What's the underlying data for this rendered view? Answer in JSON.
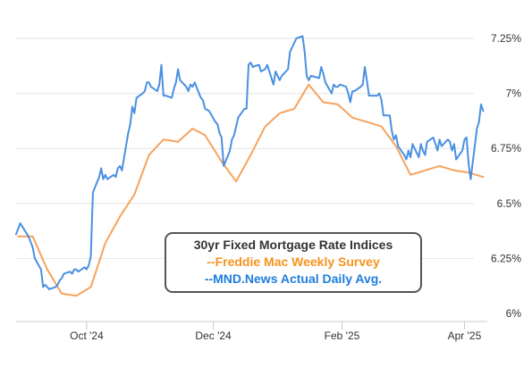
{
  "chart_data": {
    "type": "line",
    "title": "30yr Fixed Mortgage Rate Indices",
    "legend_placement": "bottom-center",
    "grid": "horizontal",
    "ylim": [
      6.0,
      7.25
    ],
    "y_ticks": [
      6.0,
      6.25,
      6.5,
      6.75,
      7.0,
      7.25
    ],
    "y_tick_labels": [
      "6%",
      "6.25%",
      "6.5%",
      "6.75%",
      "7%",
      "7.25%"
    ],
    "x_ticks": [
      "2024-10-01",
      "2024-12-01",
      "2025-02-01",
      "2025-04-01"
    ],
    "x_tick_labels": [
      "Oct '24",
      "Dec '24",
      "Feb '25",
      "Apr '25"
    ],
    "xlim": [
      "2024-08-28",
      "2025-04-12"
    ],
    "series": [
      {
        "name": "--Freddie Mac Weekly Survey",
        "color": "#f7a35c",
        "points": [
          [
            "2024-08-29",
            6.35
          ],
          [
            "2024-09-05",
            6.35
          ],
          [
            "2024-09-12",
            6.2
          ],
          [
            "2024-09-19",
            6.09
          ],
          [
            "2024-09-26",
            6.08
          ],
          [
            "2024-10-03",
            6.12
          ],
          [
            "2024-10-10",
            6.32
          ],
          [
            "2024-10-17",
            6.44
          ],
          [
            "2024-10-24",
            6.54
          ],
          [
            "2024-10-31",
            6.72
          ],
          [
            "2024-11-07",
            6.79
          ],
          [
            "2024-11-14",
            6.78
          ],
          [
            "2024-11-21",
            6.84
          ],
          [
            "2024-11-27",
            6.81
          ],
          [
            "2024-12-05",
            6.69
          ],
          [
            "2024-12-12",
            6.6
          ],
          [
            "2024-12-19",
            6.72
          ],
          [
            "2024-12-26",
            6.85
          ],
          [
            "2025-01-02",
            6.91
          ],
          [
            "2025-01-09",
            6.93
          ],
          [
            "2025-01-16",
            7.04
          ],
          [
            "2025-01-23",
            6.96
          ],
          [
            "2025-01-30",
            6.95
          ],
          [
            "2025-02-06",
            6.89
          ],
          [
            "2025-02-13",
            6.87
          ],
          [
            "2025-02-20",
            6.85
          ],
          [
            "2025-02-27",
            6.76
          ],
          [
            "2025-03-06",
            6.63
          ],
          [
            "2025-03-13",
            6.65
          ],
          [
            "2025-03-20",
            6.67
          ],
          [
            "2025-03-27",
            6.65
          ],
          [
            "2025-04-03",
            6.64
          ],
          [
            "2025-04-10",
            6.62
          ]
        ]
      },
      {
        "name": "--MND.News Actual Daily Avg.",
        "color": "#4a90e2",
        "points": [
          [
            "2024-08-28",
            6.36
          ],
          [
            "2024-08-30",
            6.41
          ],
          [
            "2024-09-03",
            6.35
          ],
          [
            "2024-09-05",
            6.3
          ],
          [
            "2024-09-06",
            6.25
          ],
          [
            "2024-09-09",
            6.2
          ],
          [
            "2024-09-10",
            6.12
          ],
          [
            "2024-09-11",
            6.13
          ],
          [
            "2024-09-12",
            6.12
          ],
          [
            "2024-09-13",
            6.11
          ],
          [
            "2024-09-16",
            6.12
          ],
          [
            "2024-09-17",
            6.13
          ],
          [
            "2024-09-18",
            6.15
          ],
          [
            "2024-09-19",
            6.16
          ],
          [
            "2024-09-20",
            6.18
          ],
          [
            "2024-09-23",
            6.19
          ],
          [
            "2024-09-24",
            6.18
          ],
          [
            "2024-09-25",
            6.2
          ],
          [
            "2024-09-26",
            6.2
          ],
          [
            "2024-09-27",
            6.19
          ],
          [
            "2024-09-30",
            6.21
          ],
          [
            "2024-10-01",
            6.2
          ],
          [
            "2024-10-02",
            6.22
          ],
          [
            "2024-10-03",
            6.26
          ],
          [
            "2024-10-04",
            6.55
          ],
          [
            "2024-10-07",
            6.62
          ],
          [
            "2024-10-08",
            6.66
          ],
          [
            "2024-10-09",
            6.61
          ],
          [
            "2024-10-10",
            6.63
          ],
          [
            "2024-10-11",
            6.61
          ],
          [
            "2024-10-14",
            6.63
          ],
          [
            "2024-10-15",
            6.62
          ],
          [
            "2024-10-16",
            6.66
          ],
          [
            "2024-10-17",
            6.67
          ],
          [
            "2024-10-18",
            6.65
          ],
          [
            "2024-10-21",
            6.82
          ],
          [
            "2024-10-22",
            6.86
          ],
          [
            "2024-10-23",
            6.94
          ],
          [
            "2024-10-24",
            6.91
          ],
          [
            "2024-10-25",
            6.98
          ],
          [
            "2024-10-28",
            7.0
          ],
          [
            "2024-10-29",
            7.01
          ],
          [
            "2024-10-30",
            7.05
          ],
          [
            "2024-10-31",
            7.05
          ],
          [
            "2024-11-01",
            7.03
          ],
          [
            "2024-11-04",
            7.01
          ],
          [
            "2024-11-05",
            7.04
          ],
          [
            "2024-11-06",
            7.13
          ],
          [
            "2024-11-07",
            6.99
          ],
          [
            "2024-11-08",
            6.99
          ],
          [
            "2024-11-11",
            6.98
          ],
          [
            "2024-11-12",
            7.02
          ],
          [
            "2024-11-13",
            7.05
          ],
          [
            "2024-11-14",
            7.11
          ],
          [
            "2024-11-15",
            7.06
          ],
          [
            "2024-11-18",
            7.03
          ],
          [
            "2024-11-19",
            7.01
          ],
          [
            "2024-11-20",
            7.04
          ],
          [
            "2024-11-21",
            7.03
          ],
          [
            "2024-11-22",
            7.05
          ],
          [
            "2024-11-25",
            6.98
          ],
          [
            "2024-11-26",
            6.97
          ],
          [
            "2024-11-27",
            6.93
          ],
          [
            "2024-11-29",
            6.92
          ],
          [
            "2024-12-02",
            6.87
          ],
          [
            "2024-12-03",
            6.86
          ],
          [
            "2024-12-04",
            6.82
          ],
          [
            "2024-12-05",
            6.8
          ],
          [
            "2024-12-06",
            6.67
          ],
          [
            "2024-12-09",
            6.74
          ],
          [
            "2024-12-10",
            6.79
          ],
          [
            "2024-12-11",
            6.81
          ],
          [
            "2024-12-12",
            6.85
          ],
          [
            "2024-12-13",
            6.89
          ],
          [
            "2024-12-16",
            6.93
          ],
          [
            "2024-12-17",
            6.93
          ],
          [
            "2024-12-18",
            7.13
          ],
          [
            "2024-12-19",
            7.14
          ],
          [
            "2024-12-20",
            7.12
          ],
          [
            "2024-12-23",
            7.13
          ],
          [
            "2024-12-24",
            7.1
          ],
          [
            "2024-12-26",
            7.11
          ],
          [
            "2024-12-27",
            7.13
          ],
          [
            "2024-12-30",
            7.04
          ],
          [
            "2024-12-31",
            7.1
          ],
          [
            "2025-01-02",
            7.06
          ],
          [
            "2025-01-03",
            7.08
          ],
          [
            "2025-01-06",
            7.11
          ],
          [
            "2025-01-07",
            7.19
          ],
          [
            "2025-01-08",
            7.21
          ],
          [
            "2025-01-10",
            7.25
          ],
          [
            "2025-01-13",
            7.26
          ],
          [
            "2025-01-14",
            7.19
          ],
          [
            "2025-01-15",
            7.08
          ],
          [
            "2025-01-16",
            7.06
          ],
          [
            "2025-01-17",
            7.08
          ],
          [
            "2025-01-21",
            7.07
          ],
          [
            "2025-01-22",
            7.12
          ],
          [
            "2025-01-23",
            7.09
          ],
          [
            "2025-01-24",
            7.05
          ],
          [
            "2025-01-27",
            7.0
          ],
          [
            "2025-01-28",
            7.04
          ],
          [
            "2025-01-29",
            7.03
          ],
          [
            "2025-01-30",
            7.03
          ],
          [
            "2025-01-31",
            7.04
          ],
          [
            "2025-02-03",
            7.03
          ],
          [
            "2025-02-04",
            7.0
          ],
          [
            "2025-02-05",
            6.96
          ],
          [
            "2025-02-06",
            7.01
          ],
          [
            "2025-02-07",
            7.01
          ],
          [
            "2025-02-10",
            7.03
          ],
          [
            "2025-02-11",
            7.04
          ],
          [
            "2025-02-12",
            7.12
          ],
          [
            "2025-02-13",
            7.06
          ],
          [
            "2025-02-14",
            6.99
          ],
          [
            "2025-02-18",
            6.99
          ],
          [
            "2025-02-19",
            7.0
          ],
          [
            "2025-02-20",
            6.97
          ],
          [
            "2025-02-21",
            6.9
          ],
          [
            "2025-02-24",
            6.9
          ],
          [
            "2025-02-25",
            6.83
          ],
          [
            "2025-02-26",
            6.79
          ],
          [
            "2025-02-27",
            6.81
          ],
          [
            "2025-02-28",
            6.76
          ],
          [
            "2025-03-03",
            6.72
          ],
          [
            "2025-03-04",
            6.7
          ],
          [
            "2025-03-05",
            6.74
          ],
          [
            "2025-03-06",
            6.71
          ],
          [
            "2025-03-07",
            6.77
          ],
          [
            "2025-03-10",
            6.71
          ],
          [
            "2025-03-11",
            6.77
          ],
          [
            "2025-03-12",
            6.74
          ],
          [
            "2025-03-13",
            6.72
          ],
          [
            "2025-03-14",
            6.78
          ],
          [
            "2025-03-17",
            6.8
          ],
          [
            "2025-03-18",
            6.77
          ],
          [
            "2025-03-19",
            6.74
          ],
          [
            "2025-03-20",
            6.79
          ],
          [
            "2025-03-21",
            6.76
          ],
          [
            "2025-03-24",
            6.79
          ],
          [
            "2025-03-25",
            6.78
          ],
          [
            "2025-03-26",
            6.74
          ],
          [
            "2025-03-27",
            6.77
          ],
          [
            "2025-03-28",
            6.7
          ],
          [
            "2025-03-31",
            6.74
          ],
          [
            "2025-04-01",
            6.79
          ],
          [
            "2025-04-02",
            6.8
          ],
          [
            "2025-04-03",
            6.68
          ],
          [
            "2025-04-04",
            6.61
          ],
          [
            "2025-04-07",
            6.84
          ],
          [
            "2025-04-08",
            6.87
          ],
          [
            "2025-04-09",
            6.95
          ],
          [
            "2025-04-10",
            6.92
          ]
        ]
      }
    ]
  }
}
